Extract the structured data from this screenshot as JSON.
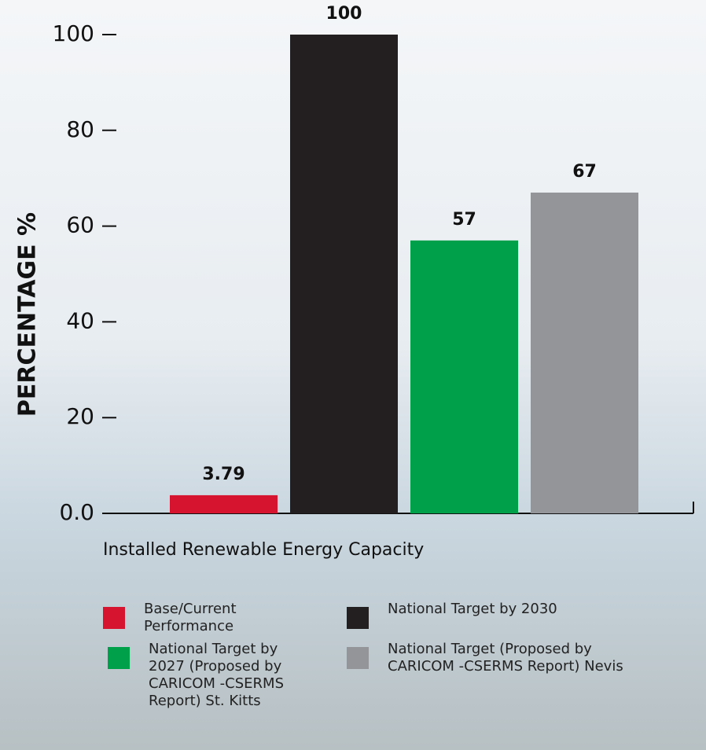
{
  "chart_data": {
    "type": "bar",
    "ylabel": "PERCENTAGE %",
    "categories": [
      "Installed Renewable Energy Capacity"
    ],
    "series": [
      {
        "name": "Base/Current Performance",
        "color": "#d6142f",
        "values": [
          3.79
        ]
      },
      {
        "name": "National Target by 2030",
        "color": "#231f20",
        "values": [
          100
        ]
      },
      {
        "name": "National Target by 2027 (Proposed by CARICOM -CSERMS Report) St. Kitts",
        "color": "#00a04a",
        "values": [
          57
        ]
      },
      {
        "name": "National Target (Proposed by CARICOM -CSERMS Report) Nevis",
        "color": "#939598",
        "values": [
          67
        ]
      }
    ],
    "ylim": [
      0,
      100
    ],
    "yticks": [
      {
        "value": 0,
        "label": "0.0"
      },
      20,
      40,
      60,
      80,
      100
    ],
    "grid": false,
    "legend": "bottom"
  }
}
